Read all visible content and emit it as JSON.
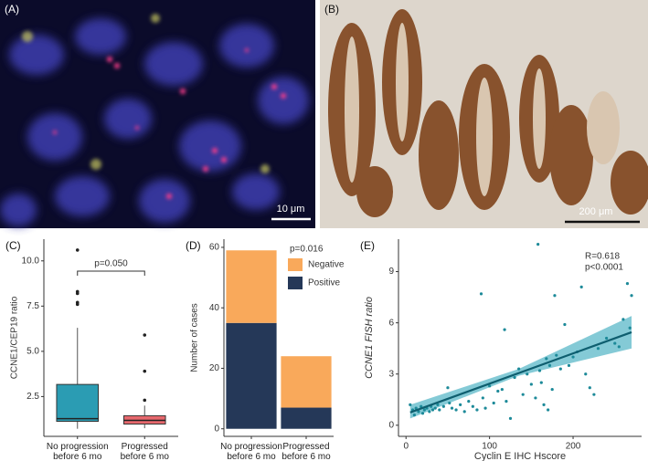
{
  "images": {
    "a": {
      "label": "(A)",
      "scale_bar": "10 μm"
    },
    "b": {
      "label": "(B)",
      "scale_bar": "200 μm"
    }
  },
  "chart_data": [
    {
      "type": "box",
      "label": "(C)",
      "y_label": "CCNE1/CEP19 ratio",
      "categories": [
        "No progression before 6 mo",
        "Progressed before 6 mo"
      ],
      "series": [
        {
          "name": "No progression before 6 mo",
          "color": "#2b9cb3",
          "whisker_low": 0.72,
          "q1": 1.13,
          "median": 1.28,
          "q3": 3.17,
          "whisker_high": 6.3,
          "outliers": [
            10.6,
            8.3,
            8.2,
            7.7,
            7.6
          ]
        },
        {
          "name": "Progressed before 6 mo",
          "color": "#e7686d",
          "whisker_low": 0.75,
          "q1": 0.98,
          "median": 1.18,
          "q3": 1.44,
          "whisker_high": 2.0,
          "outliers": [
            2.3,
            3.9,
            5.9
          ]
        }
      ],
      "annotation": "p=0.050",
      "ylim": [
        0.3,
        11.2
      ],
      "yticks": [
        2.5,
        {
          "value": 5,
          "label": "5.0"
        },
        7.5,
        {
          "value": 10,
          "label": "10.0"
        }
      ]
    },
    {
      "type": "bar",
      "label": "(D)",
      "y_label": "Number of cases",
      "stacked": true,
      "categories": [
        "No progression before 6 mo",
        "Progressed before 6 mo"
      ],
      "series": [
        {
          "name": "Positive",
          "color": "#253858",
          "values": [
            35,
            7
          ]
        },
        {
          "name": "Negative",
          "color": "#f9a95b",
          "values": [
            24,
            17
          ]
        }
      ],
      "annotation": "p=0.016",
      "ylim": [
        -2.5,
        62.7
      ],
      "yticks": [
        0,
        20,
        40,
        60
      ]
    },
    {
      "type": "scatter",
      "label": "(E)",
      "x_label": "Cyclin E IHC Hscore",
      "y_label": "CCNE1 FISH ratio",
      "color": "#1d8a99",
      "x": [
        5,
        8,
        10,
        12,
        15,
        18,
        20,
        22,
        25,
        28,
        30,
        32,
        35,
        38,
        40,
        45,
        50,
        52,
        55,
        60,
        65,
        70,
        75,
        80,
        85,
        90,
        92,
        95,
        100,
        105,
        110,
        115,
        118,
        120,
        125,
        130,
        135,
        140,
        145,
        150,
        155,
        158,
        160,
        162,
        165,
        168,
        170,
        172,
        175,
        178,
        180,
        185,
        190,
        195,
        200,
        205,
        210,
        215,
        220,
        225,
        230,
        240,
        250,
        255,
        260,
        265,
        270,
        268
      ],
      "values": [
        1.2,
        0.9,
        0.6,
        1.0,
        0.8,
        1.1,
        0.7,
        0.9,
        1.0,
        0.8,
        1.1,
        0.9,
        1.0,
        1.2,
        0.9,
        1.1,
        2.2,
        1.3,
        1.0,
        0.9,
        1.2,
        0.8,
        1.4,
        1.1,
        0.9,
        7.7,
        1.6,
        1.0,
        2.3,
        1.3,
        2.0,
        2.1,
        5.6,
        1.4,
        0.4,
        2.8,
        3.3,
        1.8,
        3.0,
        2.4,
        1.6,
        10.6,
        3.2,
        2.5,
        1.2,
        3.9,
        0.9,
        3.5,
        2.1,
        7.6,
        4.1,
        3.3,
        5.9,
        3.5,
        4.0,
        4.3,
        8.1,
        3.0,
        2.2,
        1.8,
        4.5,
        5.1,
        4.8,
        4.6,
        6.2,
        8.3,
        7.6,
        5.7
      ],
      "fit": {
        "color": "#0e5e6f",
        "x": [
          5,
          270
        ],
        "y": [
          0.75,
          5.45
        ]
      },
      "band": {
        "color": "#5bb8c8",
        "x": [
          5,
          135,
          270
        ],
        "lower": [
          0.4,
          2.9,
          4.5
        ],
        "upper": [
          1.2,
          3.3,
          6.4
        ]
      },
      "annotations": [
        "R=0.618",
        "p<0.0001"
      ],
      "xlim": [
        -9,
        282
      ],
      "xticks": [
        0,
        100,
        200
      ],
      "ylim": [
        -0.65,
        10.9
      ],
      "yticks": [
        0,
        3,
        6,
        9
      ]
    }
  ]
}
